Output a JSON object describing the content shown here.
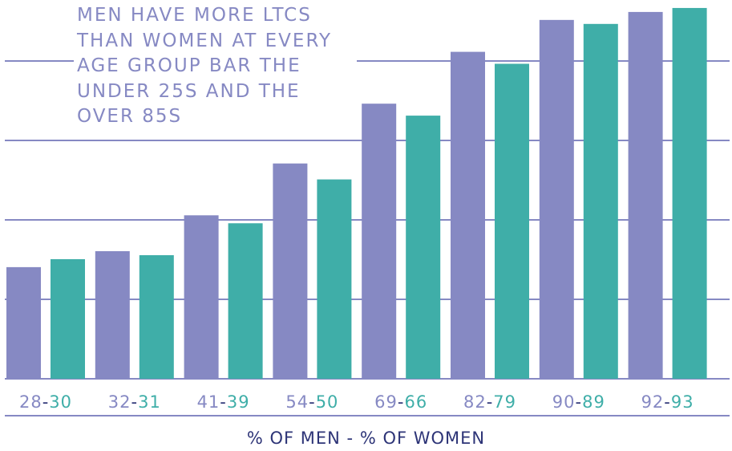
{
  "chart_data": {
    "type": "bar",
    "categories": [
      "28-30",
      "32-31",
      "41-39",
      "54-50",
      "69-66",
      "82-79",
      "90-89",
      "92-93"
    ],
    "series": [
      {
        "values": [
          28,
          32,
          41,
          54,
          69,
          82,
          90,
          92
        ]
      },
      {
        "values": [
          30,
          31,
          39,
          50,
          66,
          79,
          89,
          93
        ]
      }
    ],
    "category_parts": [
      [
        "28",
        "30"
      ],
      [
        "32",
        "31"
      ],
      [
        "41",
        "39"
      ],
      [
        "54",
        "50"
      ],
      [
        "69",
        "66"
      ],
      [
        "82",
        "79"
      ],
      [
        "90",
        "89"
      ],
      [
        "92",
        "93"
      ]
    ],
    "annotation": "Men have more LTCs than women at every age group bar the under 25s and the over 85s",
    "xlabel": "% of men - % of women",
    "title": "",
    "ylabel": "",
    "ylim": [
      0,
      95
    ],
    "grid": true,
    "legend": "none"
  },
  "colors": {
    "men": "#8689c3",
    "women": "#3faea8",
    "grid": "#8689c3",
    "label_dash": "#2d3477",
    "xlabel": "#2d3477"
  }
}
